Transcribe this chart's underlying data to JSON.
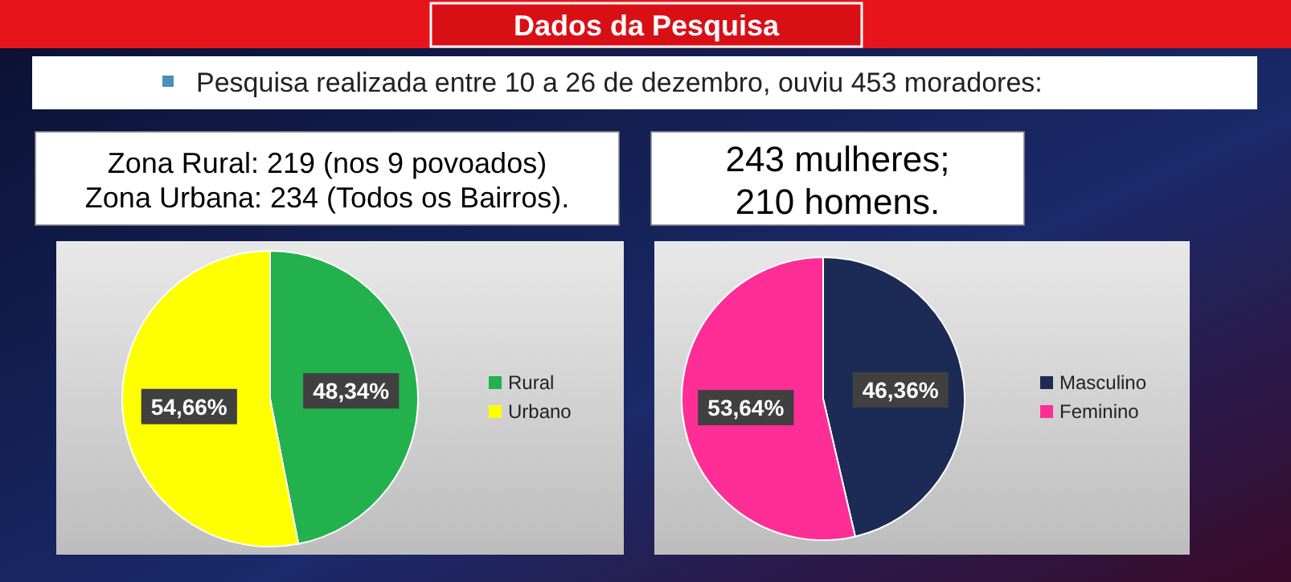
{
  "chart_data": [
    {
      "type": "other",
      "title": "Dados da Pesquisa",
      "subtitle": "Pesquisa realizada entre 10 a 26 de dezembro, ouviu 453 moradores:"
    },
    {
      "type": "pie",
      "title": "Zona Rural: 219 (nos 9 povoados)",
      "subtitle": "Zona Urbana: 234 (Todos os Bairros).",
      "categories": [
        "Rural",
        "Urbano"
      ],
      "values": [
        48.34,
        54.66
      ],
      "value_labels": [
        "48,34%",
        "54,66%"
      ],
      "colors": [
        "#22b14c",
        "#ffff00"
      ],
      "legend": "right"
    },
    {
      "type": "pie",
      "title": "243 mulheres;",
      "subtitle": "210 homens.",
      "categories": [
        "Masculino",
        "Feminino"
      ],
      "values": [
        46.36,
        53.64
      ],
      "value_labels": [
        "46,36%",
        "53,64%"
      ],
      "colors": [
        "#1c2a56",
        "#ff2d96"
      ],
      "legend": "right"
    }
  ]
}
